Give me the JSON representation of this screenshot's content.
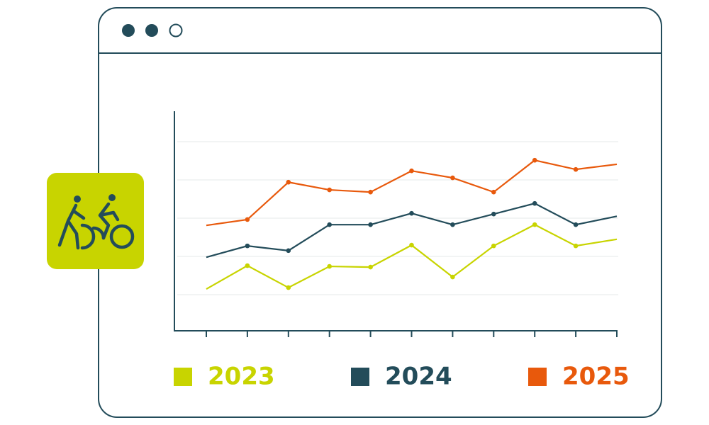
{
  "chart_data": {
    "type": "line",
    "categories": [
      null,
      null,
      null,
      null,
      null,
      null,
      null,
      null,
      null,
      null,
      null
    ],
    "ylim": [
      0,
      6
    ],
    "series": [
      {
        "name": "2023",
        "color": "#c8d400",
        "values": [
          1.14,
          1.78,
          1.18,
          1.76,
          1.74,
          2.34,
          1.47,
          2.32,
          2.9,
          2.32,
          2.5
        ]
      },
      {
        "name": "2024",
        "color": "#234c5a",
        "values": [
          2.01,
          2.32,
          2.19,
          2.9,
          2.9,
          3.21,
          2.9,
          3.19,
          3.48,
          2.9,
          3.13
        ]
      },
      {
        "name": "2025",
        "color": "#e8590c",
        "values": [
          2.88,
          3.04,
          4.06,
          3.85,
          3.79,
          4.37,
          4.18,
          3.79,
          4.66,
          4.41,
          4.55
        ]
      }
    ]
  }
}
